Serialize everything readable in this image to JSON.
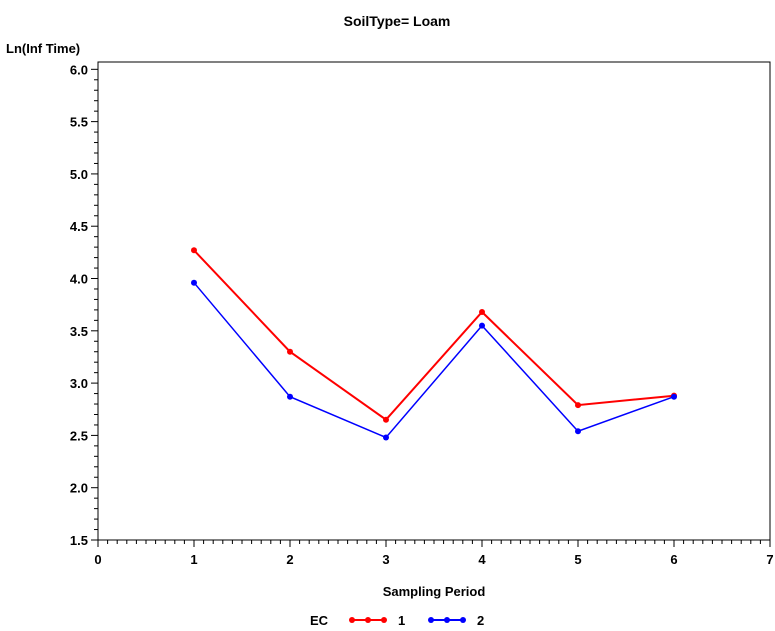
{
  "chart_data": {
    "type": "line",
    "title": "SoilType= Loam",
    "xlabel": "Sampling Period",
    "ylabel": "Ln(Inf  Time)",
    "xlim": [
      0,
      7
    ],
    "ylim": [
      1.5,
      6.0
    ],
    "x_ticks": [
      "0",
      "1",
      "2",
      "3",
      "4",
      "5",
      "6",
      "7"
    ],
    "y_ticks": [
      "1.5",
      "2.0",
      "2.5",
      "3.0",
      "3.5",
      "4.0",
      "4.5",
      "5.0",
      "5.5",
      "6.0"
    ],
    "grid": false,
    "legend": {
      "title": "EC",
      "position": "bottom-center"
    },
    "series": [
      {
        "name": "1",
        "color": "#ff0000",
        "x": [
          1,
          2,
          3,
          4,
          5,
          6
        ],
        "y": [
          4.27,
          3.3,
          2.65,
          3.68,
          2.79,
          2.88
        ]
      },
      {
        "name": "2",
        "color": "#0000ff",
        "x": [
          1,
          2,
          3,
          4,
          5,
          6
        ],
        "y": [
          3.96,
          2.87,
          2.48,
          3.55,
          2.54,
          2.87
        ]
      }
    ]
  }
}
